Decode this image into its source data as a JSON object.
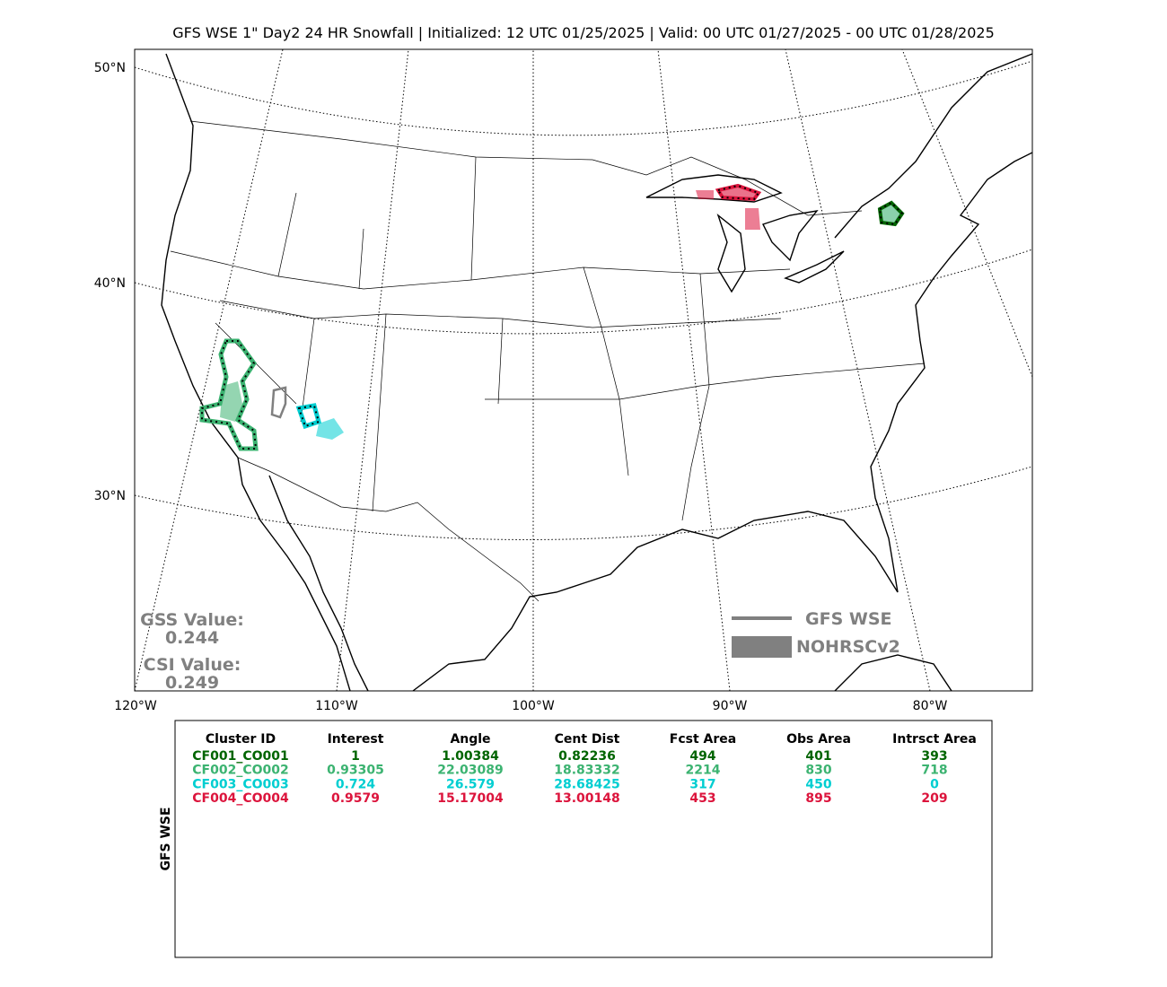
{
  "title": "GFS WSE 1\" Day2 24 HR Snowfall | Initialized: 12 UTC 01/25/2025 | Valid: 00 UTC 01/27/2025 - 00 UTC 01/28/2025",
  "map": {
    "lat_labels": [
      "50°N",
      "40°N",
      "30°N"
    ],
    "lon_labels": [
      "120°W",
      "110°W",
      "100°W",
      "90°W",
      "80°W"
    ],
    "stats": [
      {
        "label": "GSS Value:",
        "value": "0.244"
      },
      {
        "label": "CSI Value:",
        "value": "0.249"
      }
    ],
    "legend": [
      {
        "name": "GFS WSE",
        "color": "#808080"
      },
      {
        "name": "NOHRSCv2",
        "color": "#808080"
      }
    ]
  },
  "table": {
    "side_label": "GFS WSE",
    "columns": [
      "Cluster ID",
      "Interest",
      "Angle",
      "Cent Dist",
      "Fcst Area",
      "Obs Area",
      "Intrsct Area"
    ],
    "rows": [
      {
        "color": "#006400",
        "cells": [
          "CF001_CO001",
          "1",
          "1.00384",
          "0.82236",
          "494",
          "401",
          "393"
        ]
      },
      {
        "color": "#3cb371",
        "cells": [
          "CF002_CO002",
          "0.93305",
          "22.03089",
          "18.83332",
          "2214",
          "830",
          "718"
        ]
      },
      {
        "color": "#00ced1",
        "cells": [
          "CF003_CO003",
          "0.724",
          "26.579",
          "28.68425",
          "317",
          "450",
          "0"
        ]
      },
      {
        "color": "#dc143c",
        "cells": [
          "CF004_CO004",
          "0.9579",
          "15.17004",
          "13.00148",
          "453",
          "895",
          "209"
        ]
      }
    ]
  }
}
